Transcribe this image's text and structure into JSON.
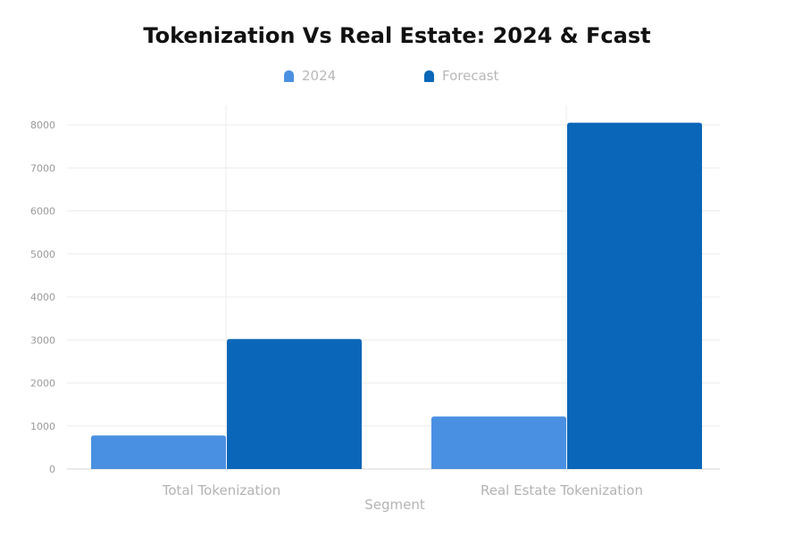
{
  "chart_data": {
    "type": "bar",
    "title": "Tokenization Vs Real Estate: 2024 & Fcast",
    "xlabel": "Segment",
    "ylabel": "",
    "categories": [
      "Total Tokenization",
      "Real Estate Tokenization"
    ],
    "series": [
      {
        "name": "2024",
        "values": [
          780,
          1220
        ],
        "color": "#4a90e2"
      },
      {
        "name": "Forecast",
        "values": [
          3020,
          8050
        ],
        "color": "#0a66b8"
      }
    ],
    "ylim": [
      0,
      8000
    ],
    "yticks": [
      0,
      1000,
      2000,
      3000,
      4000,
      5000,
      6000,
      7000,
      8000
    ],
    "grid": true,
    "legend_position": "top-center"
  }
}
